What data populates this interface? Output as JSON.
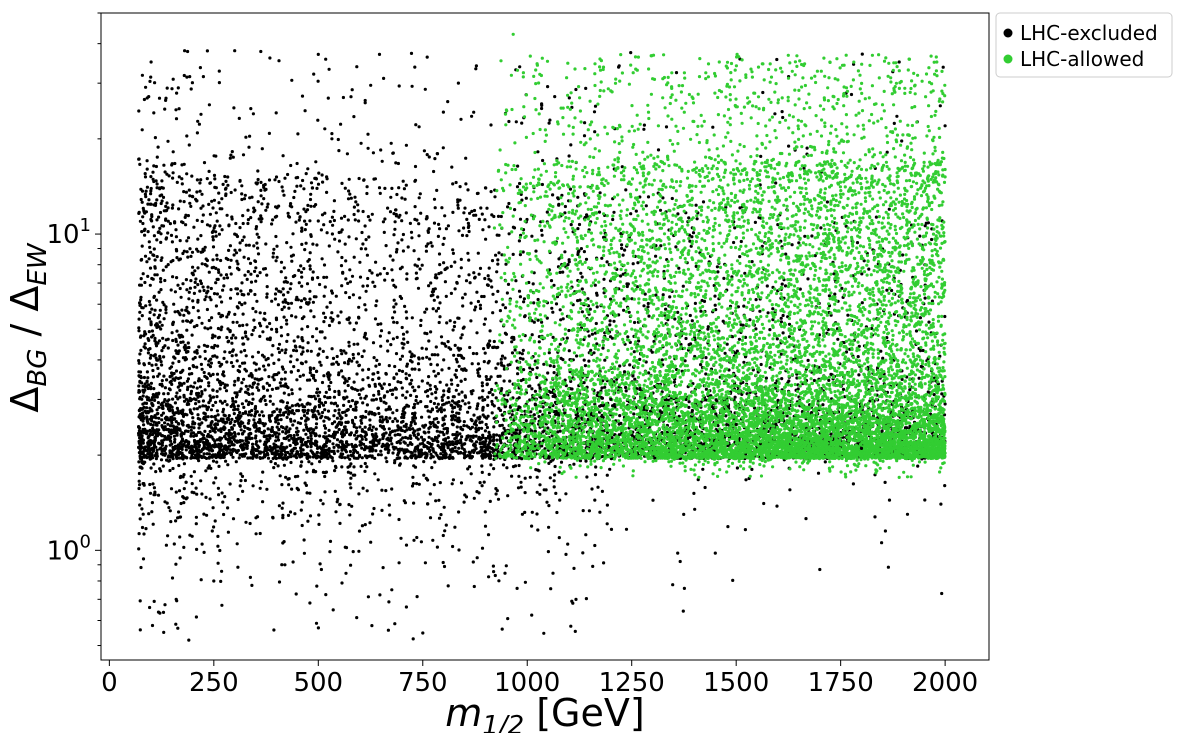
{
  "chart_data": {
    "type": "scatter",
    "title": "",
    "xlabel": {
      "base": "m",
      "sub": "1/2",
      "unit": "[GeV]"
    },
    "ylabel": {
      "a": "Δ",
      "a_sub": "BG",
      "sep": "/",
      "b": "Δ",
      "b_sub": "EW"
    },
    "x_ticks": [
      "0",
      "250",
      "500",
      "750",
      "1000",
      "1250",
      "1500",
      "1750",
      "2000"
    ],
    "y_ticks": [
      {
        "base": "10",
        "exp": "0",
        "value": 1
      },
      {
        "base": "10",
        "exp": "1",
        "value": 10
      }
    ],
    "xlim": [
      -20,
      2105
    ],
    "ylim": [
      0.45,
      50
    ],
    "yscale": "log",
    "grid": false,
    "legend_position": "upper right, outside plot",
    "legend": [
      {
        "label": "LHC-excluded",
        "color": "#000000"
      },
      {
        "label": "LHC-allowed",
        "color": "#32cd32"
      }
    ],
    "series": [
      {
        "name": "LHC-excluded",
        "color": "#000000",
        "x_range": [
          70,
          2000
        ],
        "y_range": [
          0.52,
          38
        ],
        "y_floor": 1.95,
        "approx_point_count": 25000,
        "sample_points": [
          [
            100,
            35
          ],
          [
            180,
            38
          ],
          [
            300,
            38
          ],
          [
            500,
            37
          ],
          [
            190,
            0.52
          ],
          [
            130,
            0.55
          ],
          [
            160,
            0.7
          ],
          [
            250,
            0.8
          ],
          [
            420,
            0.9
          ],
          [
            1360,
            0.98
          ],
          [
            1450,
            0.98
          ],
          [
            1700,
            0.87
          ],
          [
            1910,
            1.3
          ],
          [
            1990,
            1.4
          ],
          [
            1890,
            35
          ],
          [
            2000,
            22
          ],
          [
            300,
            10
          ],
          [
            500,
            11
          ],
          [
            700,
            13
          ],
          [
            900,
            14
          ],
          [
            400,
            5
          ],
          [
            800,
            4
          ],
          [
            1200,
            3
          ],
          [
            1500,
            2.5
          ],
          [
            1800,
            2.1
          ]
        ]
      },
      {
        "name": "LHC-allowed",
        "color": "#32cd32",
        "x_range": [
          920,
          2000
        ],
        "y_range": [
          1.7,
          37
        ],
        "y_floor": 1.95,
        "approx_point_count": 30000,
        "sample_points": [
          [
            1710,
            36
          ],
          [
            1980,
            35
          ],
          [
            1030,
            32
          ],
          [
            1300,
            31
          ],
          [
            1600,
            26
          ],
          [
            1100,
            17
          ],
          [
            1400,
            16
          ],
          [
            1800,
            15
          ],
          [
            2000,
            16
          ],
          [
            1200,
            8
          ],
          [
            1500,
            6
          ],
          [
            1900,
            4
          ],
          [
            1000,
            2.5
          ],
          [
            1400,
            2.2
          ],
          [
            1950,
            2.0
          ],
          [
            1890,
            1.7
          ]
        ]
      }
    ]
  }
}
